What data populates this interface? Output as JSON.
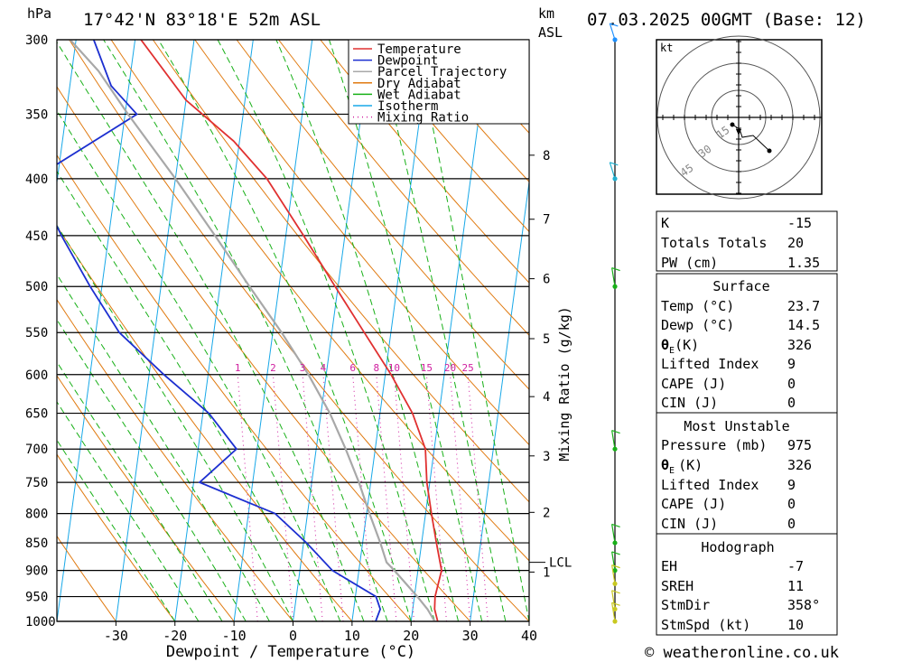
{
  "header": {
    "location": "17°42'N 83°18'E 52m ASL",
    "datetime": "07.03.2025 00GMT (Base: 12)",
    "hpa_unit": "hPa",
    "km_unit": "km",
    "asl": "ASL"
  },
  "footer": {
    "copyright": "© weatheronline.co.uk"
  },
  "colors": {
    "temperature": "#e03030",
    "dewpoint": "#1c2fd0",
    "parcel": "#a8a8a8",
    "dry_adiabat": "#e07a10",
    "wet_adiabat": "#18b018",
    "isotherm": "#18a8e8",
    "mixing_ratio": "#d020a0",
    "wind": "#18a818"
  },
  "chart_data": {
    "type": "line",
    "title": "17°42'N 83°18'E 52m ASL",
    "xlabel": "Dewpoint / Temperature (°C)",
    "ylabel": "hPa",
    "xlim": [
      -40,
      40
    ],
    "pressure_range": [
      1000,
      300
    ],
    "skew_per_log_unit": 11,
    "x_ticks": [
      -30,
      -20,
      -10,
      0,
      10,
      20,
      30,
      40
    ],
    "pressure_levels": [
      300,
      350,
      400,
      450,
      500,
      550,
      600,
      650,
      700,
      750,
      800,
      850,
      900,
      950,
      1000
    ],
    "height_axis_label": "km ASL",
    "height_ticks": [
      {
        "label": "1",
        "p": 903
      },
      {
        "label": "2",
        "p": 798
      },
      {
        "label": "3",
        "p": 710
      },
      {
        "label": "4",
        "p": 628
      },
      {
        "label": "5",
        "p": 557
      },
      {
        "label": "6",
        "p": 492
      },
      {
        "label": "7",
        "p": 435
      },
      {
        "label": "8",
        "p": 381
      }
    ],
    "lcl": {
      "label": "LCL",
      "p": 885
    },
    "mixing_ratio_label": "Mixing Ratio (g/kg)",
    "mixing_ratio_lines": [
      {
        "label": "1",
        "t600": -15
      },
      {
        "label": "2",
        "t600": -9
      },
      {
        "label": "3",
        "t600": -4
      },
      {
        "label": "4",
        "t600": -0.5
      },
      {
        "label": "6",
        "t600": 4.5
      },
      {
        "label": "8",
        "t600": 8.5
      },
      {
        "label": "10",
        "t600": 11.5
      },
      {
        "label": "15",
        "t600": 17
      },
      {
        "label": "20",
        "t600": 21
      },
      {
        "label": "25",
        "t600": 24
      }
    ],
    "series": [
      {
        "name": "Temperature",
        "points": [
          [
            1000,
            24.5
          ],
          [
            975,
            23.7
          ],
          [
            950,
            23.5
          ],
          [
            900,
            24
          ],
          [
            850,
            22.5
          ],
          [
            800,
            21
          ],
          [
            750,
            19.5
          ],
          [
            700,
            18.5
          ],
          [
            650,
            15.5
          ],
          [
            600,
            11
          ],
          [
            550,
            5.5
          ],
          [
            500,
            -0.5
          ],
          [
            450,
            -7
          ],
          [
            400,
            -14.5
          ],
          [
            370,
            -21
          ],
          [
            340,
            -30
          ],
          [
            300,
            -39
          ]
        ]
      },
      {
        "name": "Dewpoint",
        "points": [
          [
            1000,
            14
          ],
          [
            975,
            14.5
          ],
          [
            950,
            13.5
          ],
          [
            900,
            5.5
          ],
          [
            850,
            0.5
          ],
          [
            800,
            -5.5
          ],
          [
            750,
            -19
          ],
          [
            700,
            -13.5
          ],
          [
            650,
            -19
          ],
          [
            600,
            -27.5
          ],
          [
            550,
            -36
          ],
          [
            500,
            -42
          ],
          [
            450,
            -48
          ],
          [
            400,
            -54
          ],
          [
            350,
            -38
          ],
          [
            330,
            -43
          ],
          [
            300,
            -47
          ]
        ]
      },
      {
        "name": "Parcel Trajectory",
        "points": [
          [
            1000,
            24
          ],
          [
            975,
            22.5
          ],
          [
            950,
            20.5
          ],
          [
            900,
            16
          ],
          [
            885,
            14.5
          ],
          [
            850,
            13
          ],
          [
            800,
            10.5
          ],
          [
            750,
            8
          ],
          [
            700,
            5
          ],
          [
            650,
            1.5
          ],
          [
            600,
            -3
          ],
          [
            550,
            -8.5
          ],
          [
            500,
            -15
          ],
          [
            450,
            -22
          ],
          [
            400,
            -30
          ],
          [
            350,
            -39.5
          ],
          [
            320,
            -45.5
          ],
          [
            300,
            -51
          ]
        ]
      }
    ],
    "legend": [
      "Temperature",
      "Dewpoint",
      "Parcel Trajectory",
      "Dry Adiabat",
      "Wet Adiabat",
      "Isotherm",
      "Mixing Ratio"
    ],
    "legend_position": "top-right",
    "wind_profile_levels": [
      300,
      400,
      500,
      700,
      850,
      900,
      925,
      975,
      1000
    ]
  },
  "hodograph": {
    "unit": "kt",
    "ring_labels": [
      "15",
      "30",
      "45"
    ]
  },
  "indices": {
    "k_label": "K",
    "k_value": "-15",
    "tt_label": "Totals Totals",
    "tt_value": "20",
    "pw_label": "PW (cm)",
    "pw_value": "1.35"
  },
  "surface": {
    "title": "Surface",
    "temp_label": "Temp (°C)",
    "temp_value": "23.7",
    "dewp_label": "Dewp (°C)",
    "dewp_value": "14.5",
    "theta_sym": "θ",
    "theta_sub": "E",
    "theta_unit": "(K)",
    "theta_value": "326",
    "li_label": "Lifted Index",
    "li_value": "9",
    "cape_label": "CAPE (J)",
    "cape_value": "0",
    "cin_label": "CIN (J)",
    "cin_value": "0"
  },
  "most_unstable": {
    "title": "Most Unstable",
    "pressure_label": "Pressure (mb)",
    "pressure_value": "975",
    "theta_sym": "θ",
    "theta_sub": "E",
    "theta_unit": "(K)",
    "theta_value": "326",
    "li_label": "Lifted Index",
    "li_value": "9",
    "cape_label": "CAPE (J)",
    "cape_value": "0",
    "cin_label": "CIN (J)",
    "cin_value": "0"
  },
  "hodograph_table": {
    "title": "Hodograph",
    "eh_label": "EH",
    "eh_value": "-7",
    "sreh_label": "SREH",
    "sreh_value": "11",
    "stmdir_label": "StmDir",
    "stmdir_value": "358°",
    "stmspd_label": "StmSpd (kt)",
    "stmspd_value": "10"
  }
}
